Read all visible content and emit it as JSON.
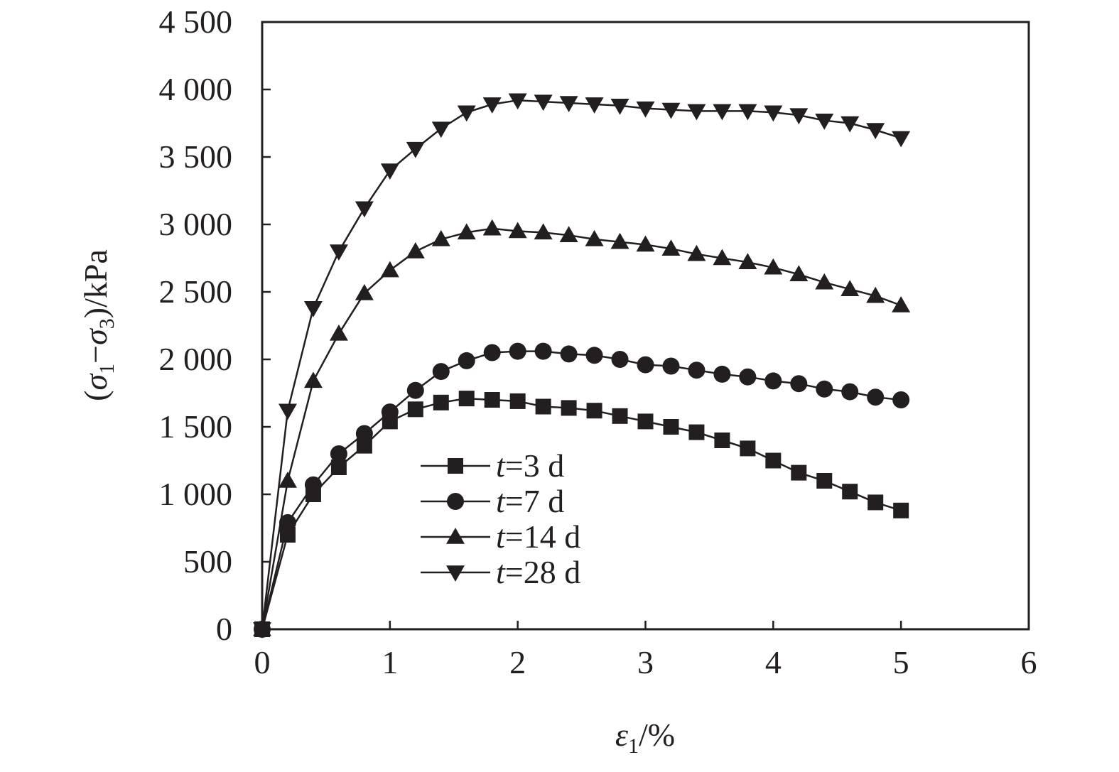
{
  "chart_data": {
    "type": "line",
    "xlabel": {
      "main": "ε",
      "sub": "1",
      "tail": "/%"
    },
    "ylabel": {
      "pre": "(",
      "s1": "σ",
      "sub1": "1",
      "minus": "−",
      "s3": "σ",
      "sub3": "3",
      "tail": ")/kPa"
    },
    "xlim": [
      0,
      6
    ],
    "ylim": [
      0,
      4500
    ],
    "xticks": [
      0,
      1,
      2,
      3,
      4,
      5,
      6
    ],
    "xtick_labels": [
      "0",
      "1",
      "2",
      "3",
      "4",
      "5",
      "6"
    ],
    "yticks": [
      0,
      500,
      1000,
      1500,
      2000,
      2500,
      3000,
      3500,
      4000,
      4500
    ],
    "ytick_labels": [
      "0",
      "500",
      "1 000",
      "1 500",
      "2 000",
      "2 500",
      "3 000",
      "3 500",
      "4 000",
      "4 500"
    ],
    "grid": false,
    "legend_position": "center-left",
    "line_color": "#231f20",
    "x": [
      0,
      0.2,
      0.4,
      0.6,
      0.8,
      1.0,
      1.2,
      1.4,
      1.6,
      1.8,
      2.0,
      2.2,
      2.4,
      2.6,
      2.8,
      3.0,
      3.2,
      3.4,
      3.6,
      3.8,
      4.0,
      4.2,
      4.4,
      4.6,
      4.8,
      5.0
    ],
    "series": [
      {
        "name": "t=3 d",
        "name_italic": "t",
        "name_rest": "=3 d",
        "marker": "square",
        "values": [
          0,
          700,
          1000,
          1200,
          1360,
          1540,
          1630,
          1680,
          1710,
          1700,
          1690,
          1650,
          1640,
          1620,
          1580,
          1540,
          1500,
          1460,
          1400,
          1340,
          1250,
          1160,
          1100,
          1020,
          940,
          880
        ]
      },
      {
        "name": "t=7 d",
        "name_italic": "t",
        "name_rest": "=7 d",
        "marker": "circle",
        "values": [
          0,
          790,
          1070,
          1300,
          1450,
          1610,
          1770,
          1910,
          1990,
          2050,
          2060,
          2060,
          2040,
          2030,
          2000,
          1960,
          1950,
          1920,
          1890,
          1870,
          1840,
          1820,
          1780,
          1760,
          1720,
          1700
        ]
      },
      {
        "name": "t=14 d",
        "name_italic": "t",
        "name_rest": "=14 d",
        "marker": "triangle-up",
        "values": [
          0,
          1100,
          1840,
          2190,
          2490,
          2660,
          2800,
          2890,
          2940,
          2970,
          2950,
          2940,
          2920,
          2890,
          2870,
          2850,
          2820,
          2780,
          2750,
          2720,
          2680,
          2630,
          2570,
          2520,
          2470,
          2400
        ]
      },
      {
        "name": "t=28 d",
        "name_italic": "t",
        "name_rest": "=28 d",
        "marker": "triangle-down",
        "values": [
          0,
          1620,
          2380,
          2800,
          3120,
          3400,
          3560,
          3710,
          3830,
          3890,
          3920,
          3910,
          3900,
          3890,
          3880,
          3860,
          3850,
          3840,
          3840,
          3840,
          3830,
          3810,
          3770,
          3750,
          3700,
          3640
        ]
      }
    ]
  }
}
